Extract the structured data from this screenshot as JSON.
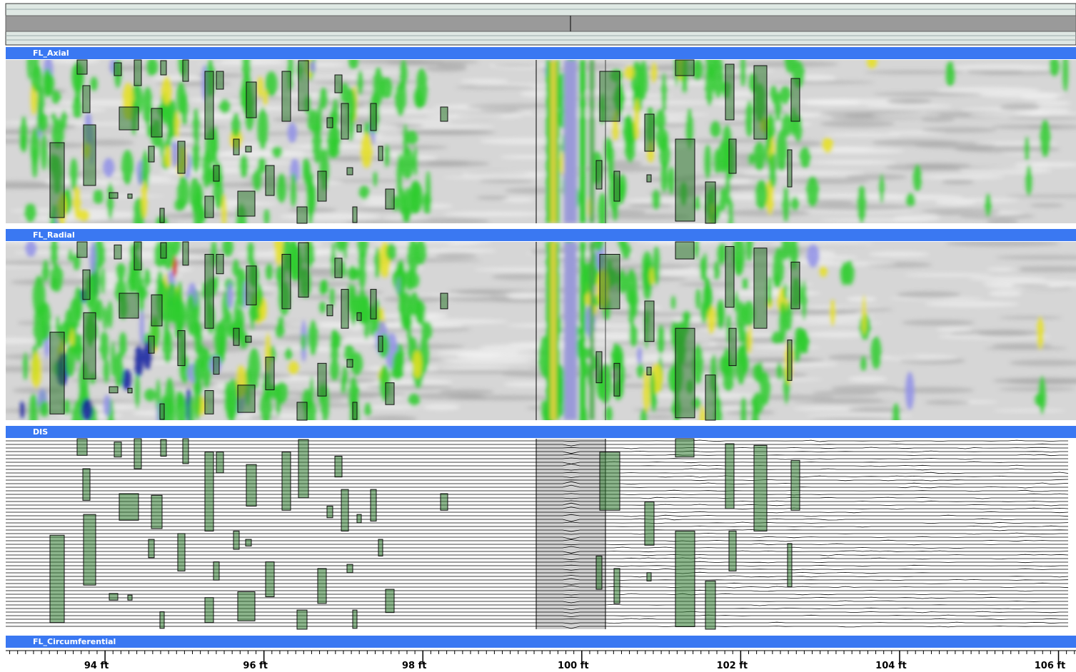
{
  "panels": [
    {
      "title": "FL_Axial"
    },
    {
      "title": "FL_Radial"
    },
    {
      "title": "DIS"
    },
    {
      "title": "FL_Circumferential"
    }
  ],
  "axis": {
    "xlim": [
      92.75,
      106.22
    ],
    "ticks": [
      {
        "value": 94,
        "label": "94 ft"
      },
      {
        "value": 96,
        "label": "96 ft"
      },
      {
        "value": 98,
        "label": "98 ft"
      },
      {
        "value": 100,
        "label": "100 ft"
      },
      {
        "value": 102,
        "label": "102 ft"
      },
      {
        "value": 104,
        "label": "104 ft"
      },
      {
        "value": 106,
        "label": "106 ft"
      }
    ]
  }
}
